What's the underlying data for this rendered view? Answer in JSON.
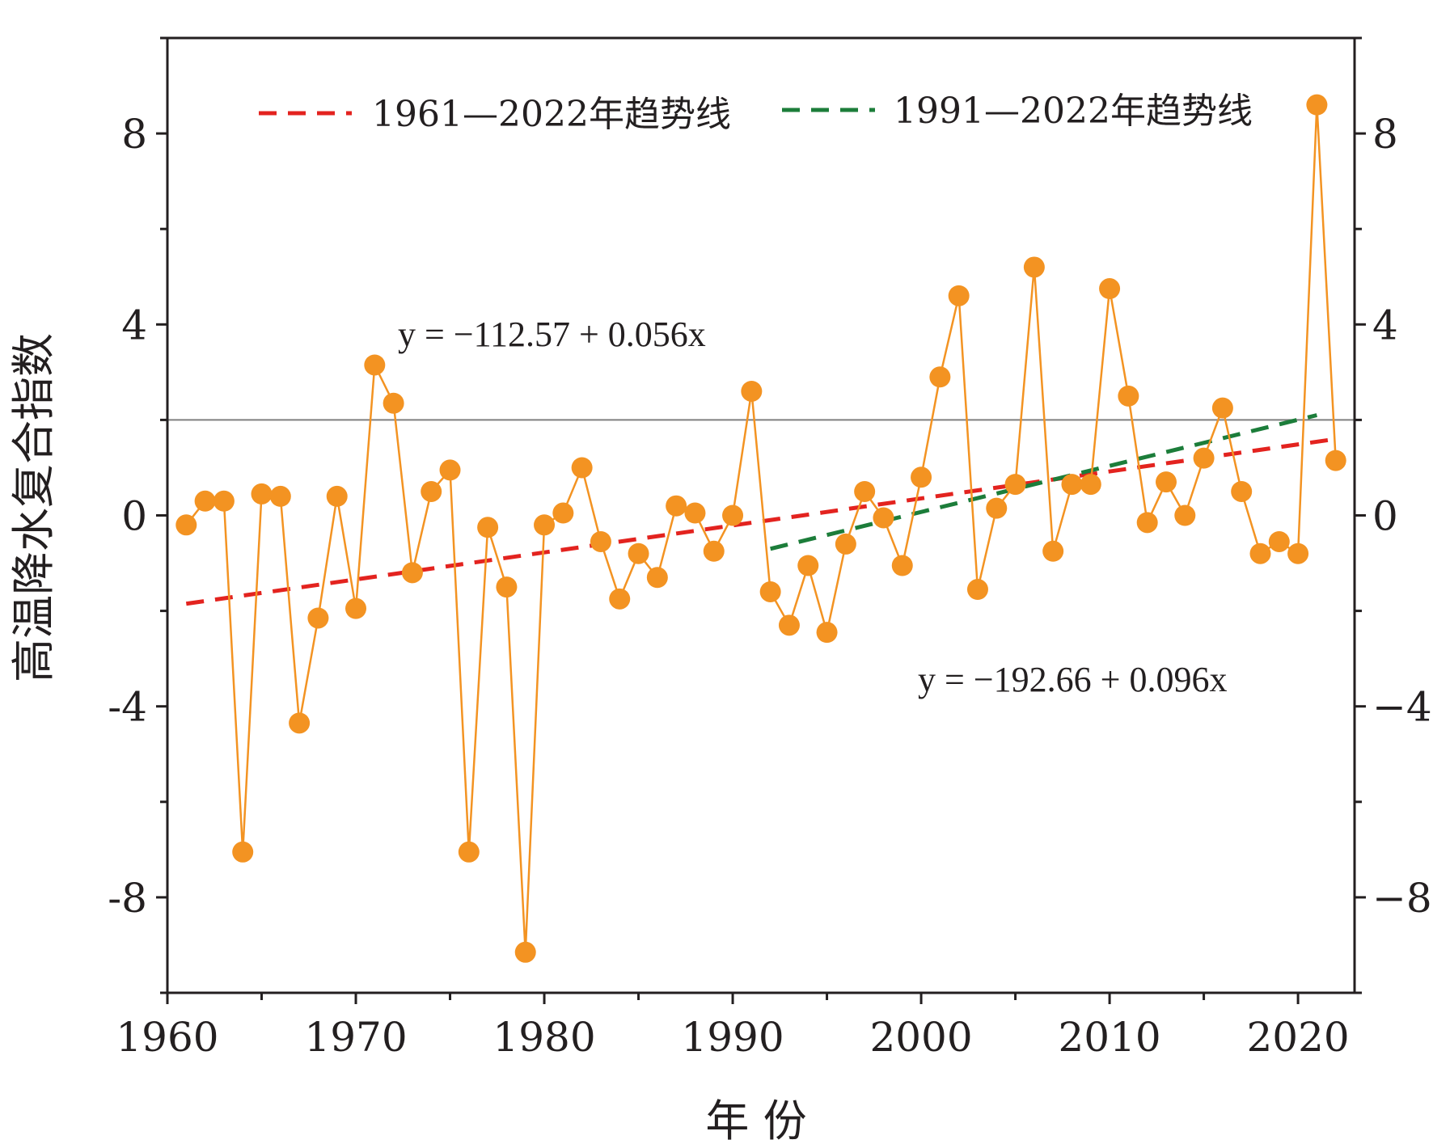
{
  "chart_data": {
    "type": "line",
    "xlabel": "年 份",
    "ylabel": "高温降水复合指数",
    "xlim": [
      1960,
      2023
    ],
    "ylim": [
      -10,
      10
    ],
    "x_ticks": [
      "1960",
      "1970",
      "1980",
      "1990",
      "2000",
      "2010",
      "2020"
    ],
    "y_ticks": [
      "8",
      "4",
      "0",
      "-4",
      "-8"
    ],
    "y_ticks_right": [
      "8",
      "4",
      "0",
      "−4",
      "−8"
    ],
    "reference_line": 2.0,
    "grid": false,
    "colors": {
      "series": "#f39322",
      "marker": "#f39322",
      "trend1": "#e3231f",
      "trend2": "#1c7d3a",
      "reference": "#7f7f7f",
      "axis": "#231f20"
    },
    "series": [
      {
        "x": [
          1961,
          1962,
          1963,
          1964,
          1965,
          1966,
          1967,
          1968,
          1969,
          1970,
          1971,
          1972,
          1973,
          1974,
          1975,
          1976,
          1977,
          1978,
          1979,
          1980,
          1981,
          1982,
          1983,
          1984,
          1985,
          1986,
          1987,
          1988,
          1989,
          1990,
          1991,
          1992,
          1993,
          1994,
          1995,
          1996,
          1997,
          1998,
          1999,
          2000,
          2001,
          2002,
          2003,
          2004,
          2005,
          2006,
          2007,
          2008,
          2009,
          2010,
          2011,
          2012,
          2013,
          2014,
          2015,
          2016,
          2017,
          2018,
          2019,
          2020,
          2021,
          2022
        ],
        "values": [
          -0.2,
          0.3,
          0.3,
          -7.05,
          0.45,
          0.4,
          -4.35,
          -2.15,
          0.4,
          -1.95,
          3.15,
          2.35,
          -1.2,
          0.5,
          0.95,
          -7.05,
          -0.25,
          -1.5,
          -9.15,
          -0.2,
          0.05,
          1.0,
          -0.55,
          -1.75,
          -0.8,
          -1.3,
          0.2,
          0.05,
          -0.75,
          0.0,
          2.6,
          -1.6,
          -2.3,
          -1.05,
          -2.45,
          -0.6,
          0.5,
          -0.05,
          -1.05,
          0.8,
          2.9,
          4.6,
          -1.55,
          0.15,
          0.65,
          5.2,
          -0.75,
          0.65,
          0.65,
          4.75,
          2.5,
          -0.15,
          0.7,
          0.0,
          1.2,
          2.25,
          0.5,
          -0.8,
          -0.55,
          -0.8,
          8.6,
          1.15
        ]
      }
    ],
    "trend_lines": [
      {
        "name": "1961—2022年趋势线",
        "x": [
          1961,
          2022
        ],
        "values": [
          -1.85,
          1.6
        ],
        "equation": "y = −112.57 + 0.056x"
      },
      {
        "name": "1991—2022年趋势线",
        "x": [
          1992,
          2021
        ],
        "values": [
          -0.7,
          2.1
        ],
        "equation": "y = −192.66 + 0.096x"
      }
    ]
  }
}
